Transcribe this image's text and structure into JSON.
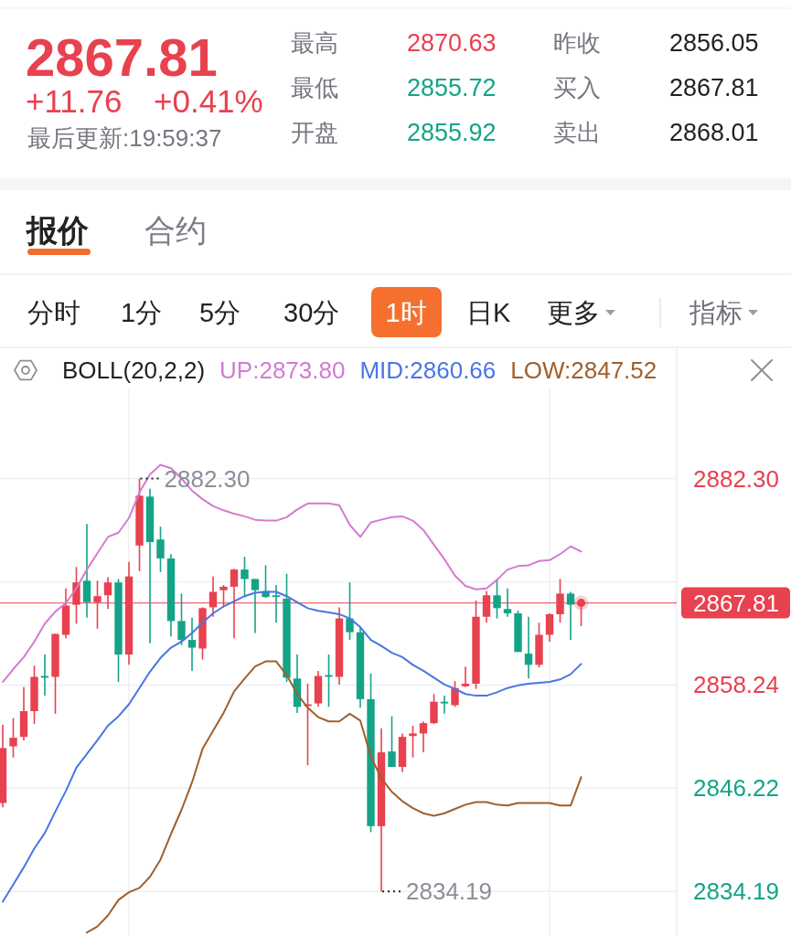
{
  "chart_data": [
    {
      "type": "other",
      "title": "2867.81",
      "annotations": [
        "+11.76",
        "+0.41%",
        "最后更新:19:59:37",
        "最高",
        "2870.63",
        "最低",
        "2855.72",
        "开盘",
        "2855.92",
        "昨收",
        "2856.05",
        "买入",
        "2867.81",
        "卖出",
        "2868.01",
        "报价",
        "合约",
        "分时",
        "1分",
        "5分",
        "30分",
        "1时",
        "日K",
        "更多",
        "指标"
      ]
    },
    {
      "type": "candlestick",
      "categories": [
        null,
        null,
        null,
        null,
        null,
        null,
        null,
        null,
        null,
        null,
        null,
        null,
        null,
        null,
        null,
        null,
        null,
        null,
        null,
        null,
        null,
        null,
        null,
        null,
        null,
        null,
        null,
        null,
        null,
        null,
        null,
        null,
        null,
        null,
        null,
        null,
        null,
        null,
        null,
        null,
        null,
        null,
        null,
        null,
        null,
        null,
        null,
        null,
        null,
        null,
        null,
        null,
        null,
        null,
        null,
        null
      ],
      "ohlc": [
        [
          2844.5,
          2853.6,
          2844.0,
          2850.9
        ],
        [
          2851.1,
          2854.4,
          2849.8,
          2852.1
        ],
        [
          2852.2,
          2858.0,
          2851.8,
          2855.2
        ],
        [
          2855.2,
          2860.5,
          2853.7,
          2859.2
        ],
        [
          2859.3,
          2861.8,
          2857.0,
          2859.1
        ],
        [
          2859.2,
          2864.2,
          2854.9,
          2864.2
        ],
        [
          2864.1,
          2869.5,
          2863.7,
          2867.5
        ],
        [
          2867.6,
          2872.0,
          2865.4,
          2870.2
        ],
        [
          2870.4,
          2877.0,
          2866.1,
          2867.9
        ],
        [
          2867.9,
          2870.4,
          2864.8,
          2868.6
        ],
        [
          2868.7,
          2870.8,
          2867.1,
          2870.2
        ],
        [
          2870.2,
          2870.6,
          2858.6,
          2861.8
        ],
        [
          2861.8,
          2872.6,
          2860.6,
          2870.9
        ],
        [
          2874.5,
          2882.3,
          2871.5,
          2880.3
        ],
        [
          2880.2,
          2881.1,
          2863.1,
          2874.9
        ],
        [
          2875.2,
          2876.7,
          2871.4,
          2873.0
        ],
        [
          2873.0,
          2873.5,
          2863.9,
          2865.7
        ],
        [
          2865.7,
          2868.9,
          2862.9,
          2863.5
        ],
        [
          2863.5,
          2866.1,
          2859.9,
          2862.6
        ],
        [
          2862.5,
          2867.3,
          2861.2,
          2867.2
        ],
        [
          2867.3,
          2870.9,
          2866.2,
          2869.1
        ],
        [
          2869.3,
          2869.9,
          2867.3,
          2869.7
        ],
        [
          2869.7,
          2871.8,
          2863.7,
          2871.7
        ],
        [
          2871.7,
          2873.2,
          2868.5,
          2870.6
        ],
        [
          2870.6,
          2870.6,
          2864.3,
          2869.3
        ],
        [
          2869.2,
          2872.2,
          2868.4,
          2868.5
        ],
        [
          2868.7,
          2869.9,
          2865.5,
          2868.5
        ],
        [
          2868.3,
          2871.2,
          2858.6,
          2859.1
        ],
        [
          2859.0,
          2861.8,
          2855.0,
          2855.7
        ],
        [
          2855.8,
          2858.4,
          2848.9,
          2856.0
        ],
        [
          2856.1,
          2859.9,
          2855.7,
          2859.3
        ],
        [
          2859.4,
          2861.8,
          2855.7,
          2859.2
        ],
        [
          2859.2,
          2867.3,
          2858.3,
          2866.0
        ],
        [
          2866.0,
          2870.2,
          2863.5,
          2864.4
        ],
        [
          2864.4,
          2865.0,
          2855.6,
          2856.6
        ],
        [
          2856.6,
          2859.6,
          2841.1,
          2841.8
        ],
        [
          2841.8,
          2853.2,
          2834.19,
          2850.4
        ],
        [
          2850.5,
          2854.6,
          2848.7,
          2848.7
        ],
        [
          2848.7,
          2852.6,
          2848.1,
          2852.2
        ],
        [
          2852.3,
          2853.5,
          2849.8,
          2852.6
        ],
        [
          2852.6,
          2854.0,
          2850.4,
          2853.8
        ],
        [
          2853.8,
          2857.2,
          2853.7,
          2856.3
        ],
        [
          2856.3,
          2857.0,
          2854.9,
          2856.1
        ],
        [
          2855.9,
          2858.7,
          2855.7,
          2857.9
        ],
        [
          2858.1,
          2860.4,
          2858.0,
          2858.4
        ],
        [
          2858.4,
          2868.1,
          2857.8,
          2866.2
        ],
        [
          2866.2,
          2869.2,
          2865.5,
          2868.7
        ],
        [
          2868.7,
          2870.6,
          2866.0,
          2867.2
        ],
        [
          2867.1,
          2869.5,
          2866.2,
          2866.6
        ],
        [
          2866.6,
          2866.9,
          2862.1,
          2862.1
        ],
        [
          2861.9,
          2866.2,
          2859.0,
          2860.6
        ],
        [
          2860.6,
          2865.5,
          2860.3,
          2864.1
        ],
        [
          2864.1,
          2866.6,
          2863.3,
          2866.5
        ],
        [
          2866.5,
          2870.6,
          2865.5,
          2868.9
        ],
        [
          2868.9,
          2869.1,
          2863.5,
          2867.6
        ],
        [
          2867.6,
          2867.9,
          2865.1,
          2867.81
        ]
      ],
      "series": [
        {
          "name": "UP:2873.80",
          "type": "line",
          "color": "#d47bcf",
          "values": [
            2858.6,
            2860.1,
            2861.5,
            2863.3,
            2865.4,
            2866.8,
            2867.8,
            2869.5,
            2871.7,
            2873.6,
            2875.5,
            2876.0,
            2877.7,
            2880.7,
            2882.8,
            2883.9,
            2883.5,
            2882.3,
            2880.9,
            2879.9,
            2879.1,
            2878.6,
            2878.2,
            2877.9,
            2877.5,
            2877.4,
            2877.4,
            2877.8,
            2878.7,
            2879.4,
            2879.4,
            2879.4,
            2879.2,
            2876.9,
            2875.5,
            2877.2,
            2877.5,
            2877.8,
            2877.9,
            2877.4,
            2876.3,
            2874.6,
            2872.9,
            2871.0,
            2869.8,
            2869.4,
            2869.5,
            2870.5,
            2871.7,
            2872.1,
            2872.2,
            2872.7,
            2872.8,
            2873.5,
            2874.4,
            2873.8
          ]
        },
        {
          "name": "MID:2860.66",
          "type": "line",
          "color": "#4876e4",
          "values": [
            2833.0,
            2835.0,
            2837.0,
            2839.2,
            2841.0,
            2843.5,
            2845.9,
            2848.6,
            2850.2,
            2851.8,
            2853.5,
            2854.6,
            2856.0,
            2857.9,
            2859.8,
            2861.4,
            2862.6,
            2863.3,
            2864.3,
            2865.5,
            2866.6,
            2867.4,
            2868.0,
            2868.6,
            2869.0,
            2869.1,
            2869.1,
            2868.6,
            2867.9,
            2867.2,
            2866.9,
            2866.7,
            2866.5,
            2866.0,
            2865.0,
            2863.5,
            2862.8,
            2862.0,
            2861.5,
            2860.6,
            2859.9,
            2859.1,
            2858.3,
            2857.8,
            2857.2,
            2857.0,
            2857.0,
            2857.4,
            2857.9,
            2858.2,
            2858.4,
            2858.5,
            2858.6,
            2858.9,
            2859.5,
            2860.7
          ]
        },
        {
          "name": "LOW:2847.52",
          "type": "line",
          "color": "#a05f2b",
          "values": [
            null,
            null,
            null,
            null,
            null,
            null,
            null,
            null,
            2829.4,
            2830.1,
            2831.4,
            2833.2,
            2834.1,
            2834.6,
            2835.9,
            2837.9,
            2840.9,
            2843.7,
            2846.9,
            2850.8,
            2852.9,
            2855.0,
            2857.5,
            2859.0,
            2860.4,
            2861.0,
            2861.0,
            2859.4,
            2857.2,
            2855.6,
            2854.5,
            2854.0,
            2854.0,
            2854.9,
            2854.1,
            2849.9,
            2847.4,
            2845.8,
            2844.7,
            2843.9,
            2843.3,
            2843.0,
            2843.3,
            2843.8,
            2844.3,
            2844.6,
            2844.6,
            2844.3,
            2844.2,
            2844.5,
            2844.5,
            2844.5,
            2844.5,
            2844.2,
            2844.2,
            2847.5
          ]
        },
        {
          "type": "scatter",
          "color": "#e8414f",
          "values": [
            null,
            null,
            null,
            null,
            null,
            null,
            null,
            null,
            null,
            null,
            null,
            null,
            null,
            null,
            null,
            null,
            null,
            null,
            null,
            null,
            null,
            null,
            null,
            null,
            null,
            null,
            null,
            null,
            null,
            null,
            null,
            null,
            null,
            null,
            null,
            null,
            null,
            null,
            null,
            null,
            null,
            null,
            null,
            null,
            null,
            null,
            null,
            null,
            null,
            null,
            null,
            null,
            null,
            null,
            null,
            2867.81
          ]
        }
      ],
      "legend_title": "BOLL(20,2,2)",
      "legend": "top",
      "tick_labels": "y",
      "grid": true,
      "ylim": [
        2829.0,
        2892.8
      ],
      "yticks": [
        {
          "value": 2882.3,
          "label": "2882.30"
        },
        {
          "value": 2870.27,
          "label": null
        },
        2858.24,
        2846.22,
        2834.19
      ],
      "ref_lines": [
        {
          "axis": "y",
          "value": 2867.81,
          "label": "2867.81",
          "color": "#e8414f"
        }
      ],
      "annotations": [
        "2882.30",
        "2834.19"
      ]
    }
  ]
}
